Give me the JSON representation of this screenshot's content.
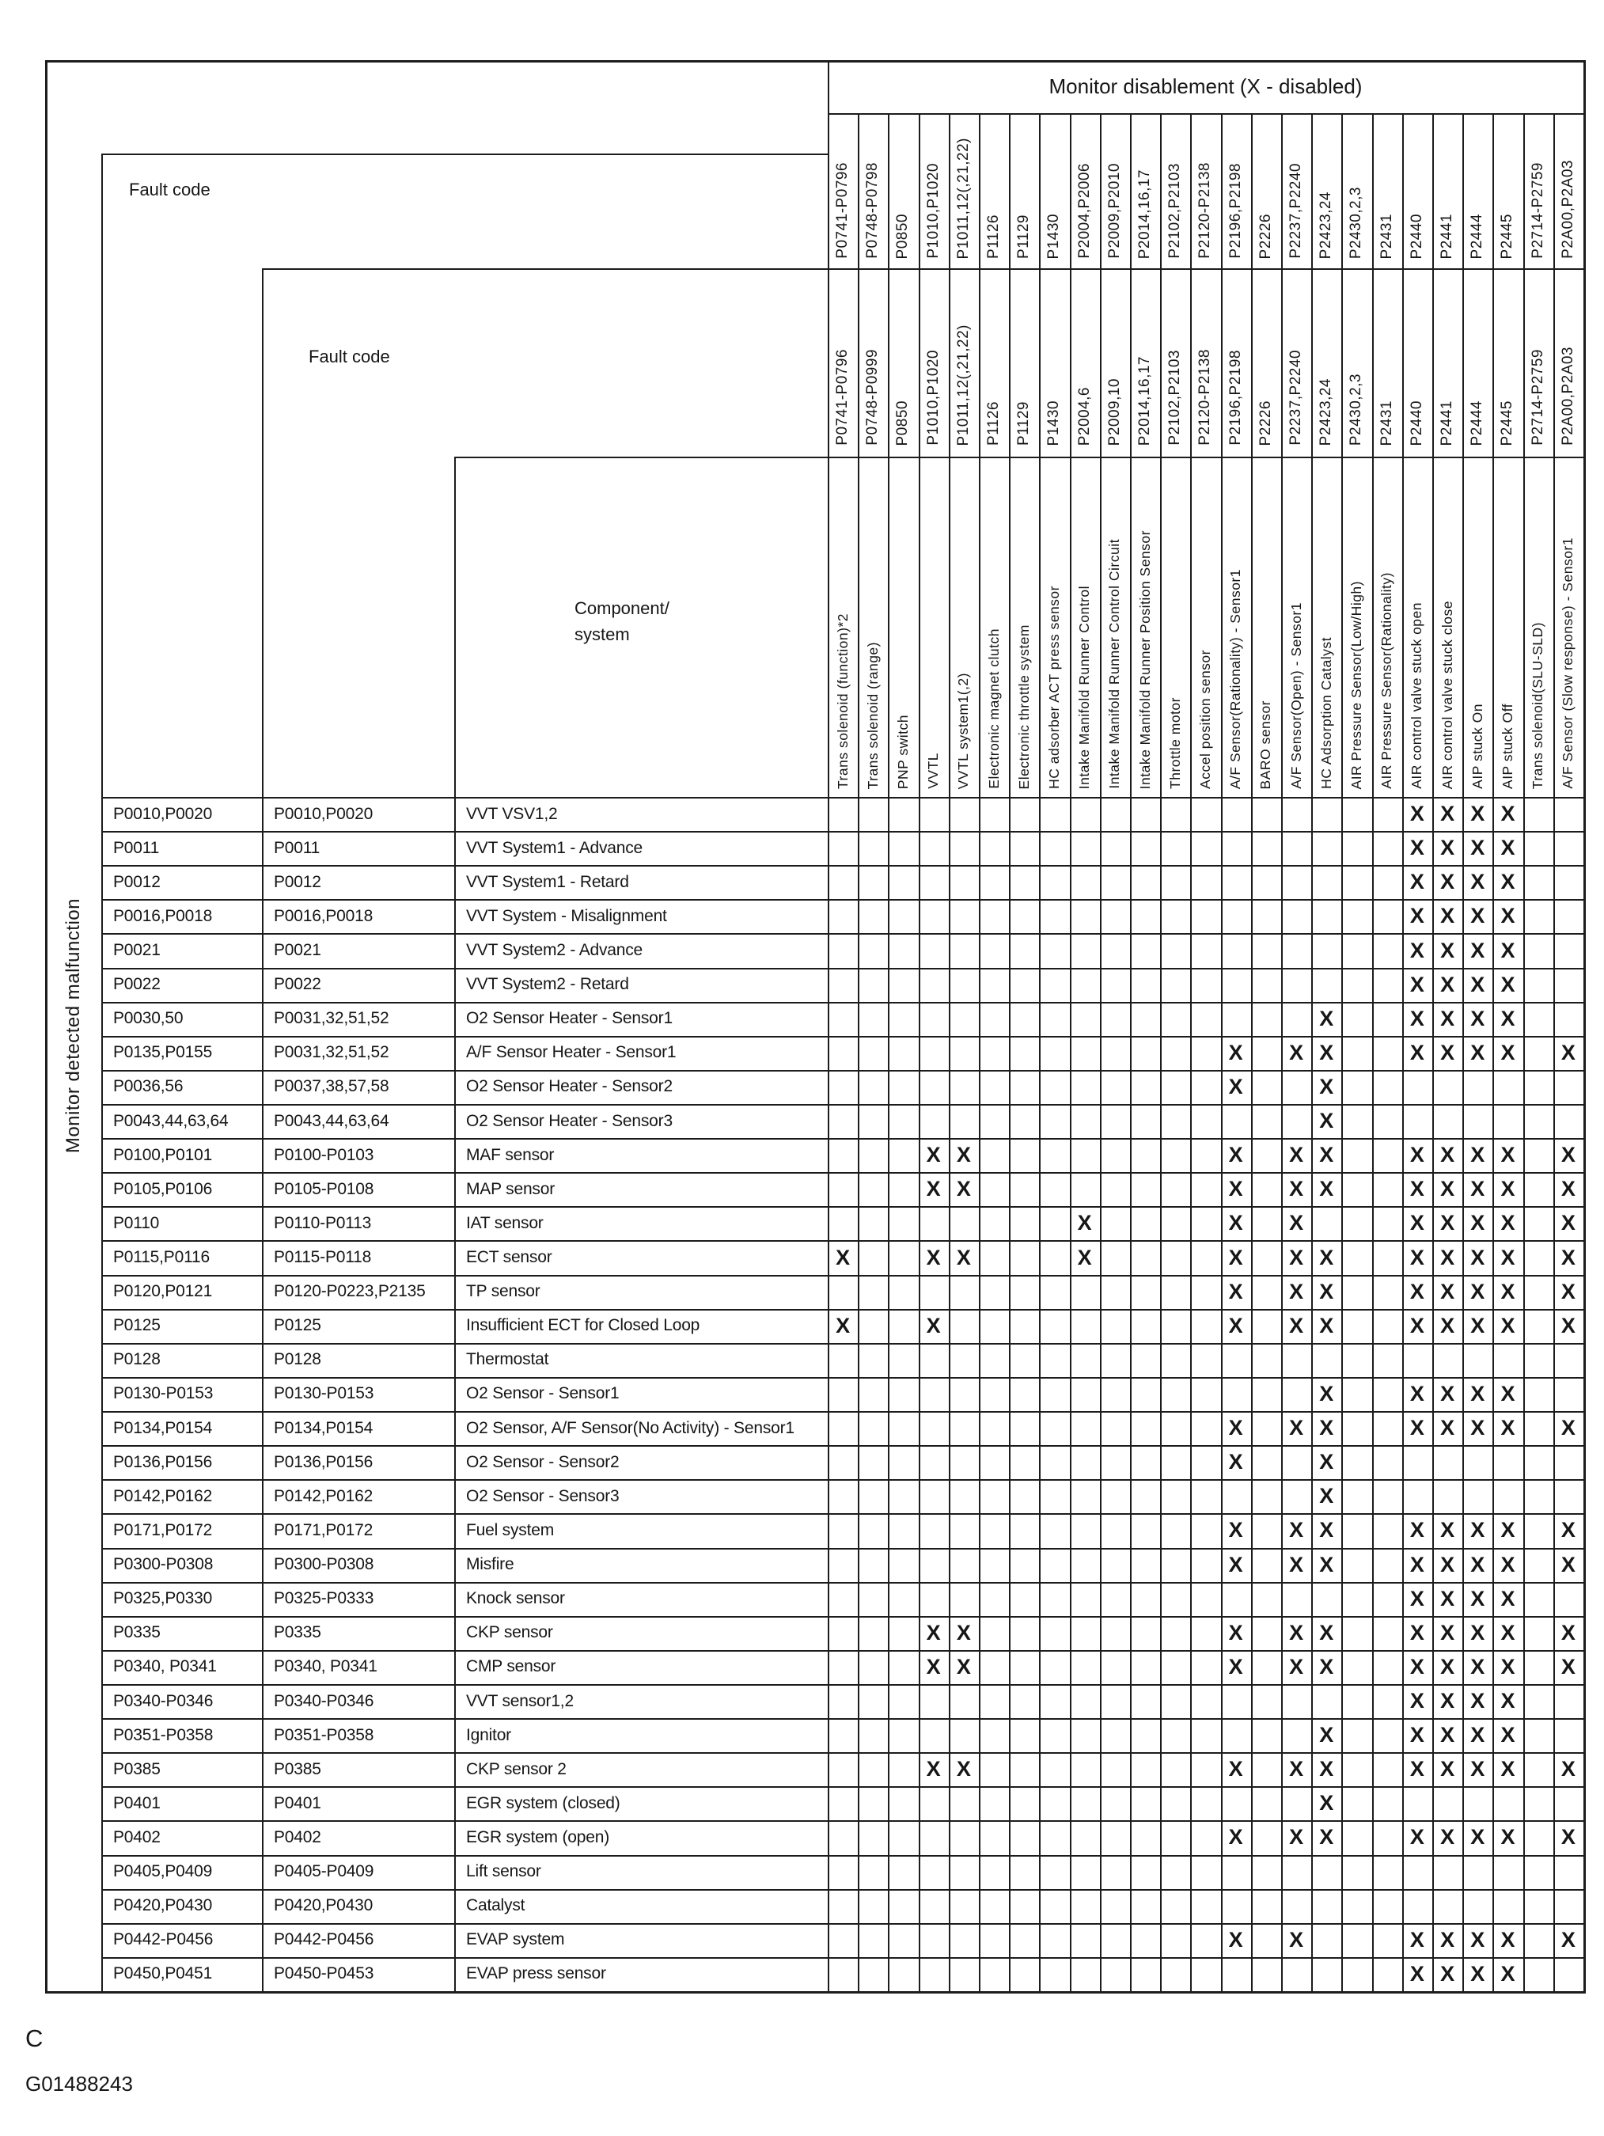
{
  "title": "Monitor disablement (X - disabled)",
  "left_label": "Monitor detected malfunction",
  "headers": {
    "fault_code_1": "Fault code",
    "fault_code_2": "Fault code",
    "component_system": "Component/\nsystem"
  },
  "mark_symbol": "X",
  "columns": [
    {
      "code_row1": "P0741-P0796",
      "code_row2": "P0741-P0796",
      "component": "Trans solenoid (function)*2"
    },
    {
      "code_row1": "P0748-P0798",
      "code_row2": "P0748-P0999",
      "component": "Trans solenoid (range)"
    },
    {
      "code_row1": "P0850",
      "code_row2": "P0850",
      "component": "PNP switch"
    },
    {
      "code_row1": "P1010,P1020",
      "code_row2": "P1010,P1020",
      "component": "VVTL"
    },
    {
      "code_row1": "P1011,12(,21,22)",
      "code_row2": "P1011,12(,21,22)",
      "component": "VVTL system1(,2)"
    },
    {
      "code_row1": "P1126",
      "code_row2": "P1126",
      "component": "Electronic magnet clutch"
    },
    {
      "code_row1": "P1129",
      "code_row2": "P1129",
      "component": "Electronic throttle system"
    },
    {
      "code_row1": "P1430",
      "code_row2": "P1430",
      "component": "HC adsorber ACT press sensor"
    },
    {
      "code_row1": "P2004,P2006",
      "code_row2": "P2004,6",
      "component": "Intake Manifold Runner Control"
    },
    {
      "code_row1": "P2009,P2010",
      "code_row2": "P2009,10",
      "component": "Intake Manifold Runner Control Circuit"
    },
    {
      "code_row1": "P2014,16,17",
      "code_row2": "P2014,16,17",
      "component": "Intake Manifold Runner Position Sensor"
    },
    {
      "code_row1": "P2102,P2103",
      "code_row2": "P2102,P2103",
      "component": "Throttle motor"
    },
    {
      "code_row1": "P2120-P2138",
      "code_row2": "P2120-P2138",
      "component": "Accel position sensor"
    },
    {
      "code_row1": "P2196,P2198",
      "code_row2": "P2196,P2198",
      "component": "A/F Sensor(Rationality) - Sensor1"
    },
    {
      "code_row1": "P2226",
      "code_row2": "P2226",
      "component": "BARO sensor"
    },
    {
      "code_row1": "P2237,P2240",
      "code_row2": "P2237,P2240",
      "component": "A/F Sensor(Open) - Sensor1"
    },
    {
      "code_row1": "P2423,24",
      "code_row2": "P2423,24",
      "component": "HC Adsorption Catalyst"
    },
    {
      "code_row1": "P2430,2,3",
      "code_row2": "P2430,2,3",
      "component": "AIR Pressure Sensor(Low/High)"
    },
    {
      "code_row1": "P2431",
      "code_row2": "P2431",
      "component": "AIR Pressure Sensor(Rationality)"
    },
    {
      "code_row1": "P2440",
      "code_row2": "P2440",
      "component": "AIR control valve stuck open"
    },
    {
      "code_row1": "P2441",
      "code_row2": "P2441",
      "component": "AIR control valve stuck close"
    },
    {
      "code_row1": "P2444",
      "code_row2": "P2444",
      "component": "AIP stuck On"
    },
    {
      "code_row1": "P2445",
      "code_row2": "P2445",
      "component": "AIP stuck Off"
    },
    {
      "code_row1": "P2714-P2759",
      "code_row2": "P2714-P2759",
      "component": "Trans solenoid(SLU-SLD)"
    },
    {
      "code_row1": "P2A00,P2A03",
      "code_row2": "P2A00,P2A03",
      "component": "A/F Sensor (Slow response) - Sensor1"
    }
  ],
  "rows": [
    {
      "fault_code_1": "P0010,P0020",
      "fault_code_2": "P0010,P0020",
      "component": "VVT VSV1,2",
      "marks": [
        20,
        21,
        22,
        23
      ]
    },
    {
      "fault_code_1": "P0011",
      "fault_code_2": "P0011",
      "component": "VVT System1 - Advance",
      "marks": [
        20,
        21,
        22,
        23
      ]
    },
    {
      "fault_code_1": "P0012",
      "fault_code_2": "P0012",
      "component": "VVT System1 - Retard",
      "marks": [
        20,
        21,
        22,
        23
      ]
    },
    {
      "fault_code_1": "P0016,P0018",
      "fault_code_2": "P0016,P0018",
      "component": "VVT System - Misalignment",
      "marks": [
        20,
        21,
        22,
        23
      ]
    },
    {
      "fault_code_1": "P0021",
      "fault_code_2": "P0021",
      "component": "VVT System2 - Advance",
      "marks": [
        20,
        21,
        22,
        23
      ]
    },
    {
      "fault_code_1": "P0022",
      "fault_code_2": "P0022",
      "component": "VVT System2 - Retard",
      "marks": [
        20,
        21,
        22,
        23
      ]
    },
    {
      "fault_code_1": "P0030,50",
      "fault_code_2": "P0031,32,51,52",
      "component": "O2 Sensor Heater - Sensor1",
      "marks": [
        17,
        20,
        21,
        22,
        23
      ]
    },
    {
      "fault_code_1": "P0135,P0155",
      "fault_code_2": "P0031,32,51,52",
      "component": "A/F Sensor Heater  - Sensor1",
      "marks": [
        14,
        16,
        17,
        20,
        21,
        22,
        23,
        25
      ]
    },
    {
      "fault_code_1": "P0036,56",
      "fault_code_2": "P0037,38,57,58",
      "component": "O2 Sensor Heater - Sensor2",
      "marks": [
        14,
        17
      ]
    },
    {
      "fault_code_1": "P0043,44,63,64",
      "fault_code_2": "P0043,44,63,64",
      "component": "O2 Sensor Heater - Sensor3",
      "marks": [
        17
      ]
    },
    {
      "fault_code_1": "P0100,P0101",
      "fault_code_2": "P0100-P0103",
      "component": "MAF sensor",
      "marks": [
        4,
        5,
        14,
        16,
        17,
        20,
        21,
        22,
        23,
        25
      ]
    },
    {
      "fault_code_1": "P0105,P0106",
      "fault_code_2": "P0105-P0108",
      "component": "MAP sensor",
      "marks": [
        4,
        5,
        14,
        16,
        17,
        20,
        21,
        22,
        23,
        25
      ]
    },
    {
      "fault_code_1": "P0110",
      "fault_code_2": "P0110-P0113",
      "component": "IAT sensor",
      "marks": [
        9,
        14,
        16,
        20,
        21,
        22,
        23,
        25
      ]
    },
    {
      "fault_code_1": "P0115,P0116",
      "fault_code_2": "P0115-P0118",
      "component": "ECT sensor",
      "marks": [
        1,
        4,
        5,
        9,
        14,
        16,
        17,
        20,
        21,
        22,
        23,
        25
      ]
    },
    {
      "fault_code_1": "P0120,P0121",
      "fault_code_2": "P0120-P0223,P2135",
      "component": "TP sensor",
      "marks": [
        14,
        16,
        17,
        20,
        21,
        22,
        23,
        25
      ]
    },
    {
      "fault_code_1": "P0125",
      "fault_code_2": "P0125",
      "component": "Insufficient ECT for Closed Loop",
      "marks": [
        1,
        4,
        14,
        16,
        17,
        20,
        21,
        22,
        23,
        25
      ]
    },
    {
      "fault_code_1": "P0128",
      "fault_code_2": "P0128",
      "component": "Thermostat",
      "marks": []
    },
    {
      "fault_code_1": "P0130-P0153",
      "fault_code_2": "P0130-P0153",
      "component": "O2 Sensor - Sensor1",
      "marks": [
        17,
        20,
        21,
        22,
        23
      ]
    },
    {
      "fault_code_1": "P0134,P0154",
      "fault_code_2": "P0134,P0154",
      "component": "O2 Sensor, A/F Sensor(No Activity) - Sensor1",
      "marks": [
        14,
        16,
        17,
        20,
        21,
        22,
        23,
        25
      ]
    },
    {
      "fault_code_1": "P0136,P0156",
      "fault_code_2": "P0136,P0156",
      "component": "O2 Sensor - Sensor2",
      "marks": [
        14,
        17
      ]
    },
    {
      "fault_code_1": "P0142,P0162",
      "fault_code_2": "P0142,P0162",
      "component": "O2 Sensor - Sensor3",
      "marks": [
        17
      ]
    },
    {
      "fault_code_1": "P0171,P0172",
      "fault_code_2": "P0171,P0172",
      "component": "Fuel system",
      "marks": [
        14,
        16,
        17,
        20,
        21,
        22,
        23,
        25
      ]
    },
    {
      "fault_code_1": "P0300-P0308",
      "fault_code_2": "P0300-P0308",
      "component": "Misfire",
      "marks": [
        14,
        16,
        17,
        20,
        21,
        22,
        23,
        25
      ]
    },
    {
      "fault_code_1": "P0325,P0330",
      "fault_code_2": "P0325-P0333",
      "component": "Knock sensor",
      "marks": [
        20,
        21,
        22,
        23
      ]
    },
    {
      "fault_code_1": "P0335",
      "fault_code_2": "P0335",
      "component": "CKP sensor",
      "marks": [
        4,
        5,
        14,
        16,
        17,
        20,
        21,
        22,
        23,
        25
      ]
    },
    {
      "fault_code_1": "P0340, P0341",
      "fault_code_2": "P0340, P0341",
      "component": "CMP sensor",
      "marks": [
        4,
        5,
        14,
        16,
        17,
        20,
        21,
        22,
        23,
        25
      ]
    },
    {
      "fault_code_1": "P0340-P0346",
      "fault_code_2": "P0340-P0346",
      "component": "VVT sensor1,2",
      "marks": [
        20,
        21,
        22,
        23
      ]
    },
    {
      "fault_code_1": "P0351-P0358",
      "fault_code_2": "P0351-P0358",
      "component": "Ignitor",
      "marks": [
        17,
        20,
        21,
        22,
        23
      ]
    },
    {
      "fault_code_1": "P0385",
      "fault_code_2": "P0385",
      "component": "CKP sensor 2",
      "marks": [
        4,
        5,
        14,
        16,
        17,
        20,
        21,
        22,
        23,
        25
      ]
    },
    {
      "fault_code_1": "P0401",
      "fault_code_2": "P0401",
      "component": "EGR system (closed)",
      "marks": [
        17
      ]
    },
    {
      "fault_code_1": "P0402",
      "fault_code_2": "P0402",
      "component": "EGR system (open)",
      "marks": [
        14,
        16,
        17,
        20,
        21,
        22,
        23,
        25
      ]
    },
    {
      "fault_code_1": "P0405,P0409",
      "fault_code_2": "P0405-P0409",
      "component": "Lift sensor",
      "marks": []
    },
    {
      "fault_code_1": "P0420,P0430",
      "fault_code_2": "P0420,P0430",
      "component": "Catalyst",
      "marks": []
    },
    {
      "fault_code_1": "P0442-P0456",
      "fault_code_2": "P0442-P0456",
      "component": "EVAP system",
      "marks": [
        14,
        16,
        20,
        21,
        22,
        23,
        25
      ]
    },
    {
      "fault_code_1": "P0450,P0451",
      "fault_code_2": "P0450-P0453",
      "component": "EVAP press sensor",
      "marks": [
        20,
        21,
        22,
        23
      ]
    }
  ],
  "footer": {
    "section_label": "C",
    "figure_code": "G01488243"
  }
}
